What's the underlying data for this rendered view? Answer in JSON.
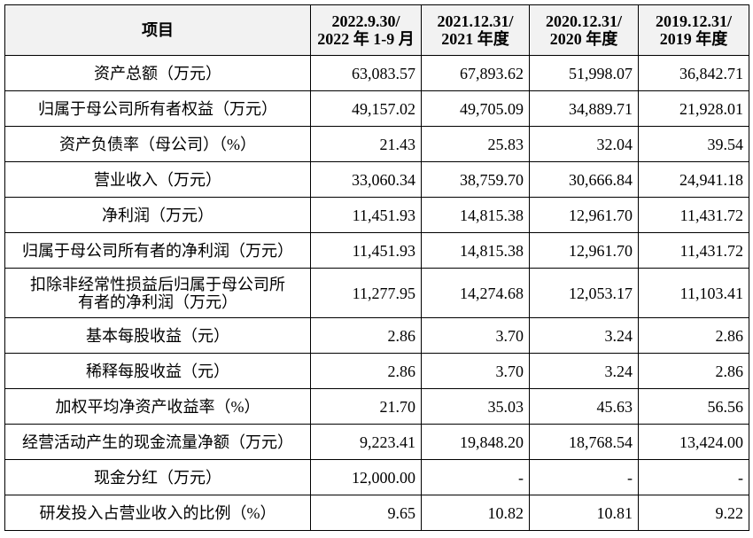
{
  "table": {
    "header": [
      "项目",
      [
        "2022.9.30/",
        "2022 年 1-9 月"
      ],
      [
        "2021.12.31/",
        "2021 年度"
      ],
      [
        "2020.12.31/",
        "2020 年度"
      ],
      [
        "2019.12.31/",
        "2019 年度"
      ]
    ],
    "rows": [
      [
        "资产总额（万元）",
        "63,083.57",
        "67,893.62",
        "51,998.07",
        "36,842.71"
      ],
      [
        "归属于母公司所有者权益（万元）",
        "49,157.02",
        "49,705.09",
        "34,889.71",
        "21,928.01"
      ],
      [
        "资产负债率（母公司）（%）",
        "21.43",
        "25.83",
        "32.04",
        "39.54"
      ],
      [
        "营业收入（万元）",
        "33,060.34",
        "38,759.70",
        "30,666.84",
        "24,941.18"
      ],
      [
        "净利润（万元）",
        "11,451.93",
        "14,815.38",
        "12,961.70",
        "11,431.72"
      ],
      [
        "归属于母公司所有者的净利润（万元）",
        "11,451.93",
        "14,815.38",
        "12,961.70",
        "11,431.72"
      ],
      [
        [
          "扣除非经常性损益后归属于母公司所",
          "有者的净利润（万元）"
        ],
        "11,277.95",
        "14,274.68",
        "12,053.17",
        "11,103.41"
      ],
      [
        "基本每股收益（元）",
        "2.86",
        "3.70",
        "3.24",
        "2.86"
      ],
      [
        "稀释每股收益（元）",
        "2.86",
        "3.70",
        "3.24",
        "2.86"
      ],
      [
        "加权平均净资产收益率（%）",
        "21.70",
        "35.03",
        "45.63",
        "56.56"
      ],
      [
        "经营活动产生的现金流量净额（万元）",
        "9,223.41",
        "19,848.20",
        "18,768.54",
        "13,424.00"
      ],
      [
        "现金分红（万元）",
        "12,000.00",
        "-",
        "-",
        "-"
      ],
      [
        "研发投入占营业收入的比例（%）",
        "9.65",
        "10.82",
        "10.81",
        "9.22"
      ]
    ]
  }
}
